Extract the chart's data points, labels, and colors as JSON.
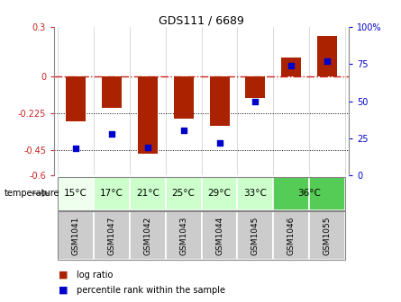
{
  "title": "GDS111 / 6689",
  "samples": [
    "GSM1041",
    "GSM1047",
    "GSM1042",
    "GSM1043",
    "GSM1044",
    "GSM1045",
    "GSM1046",
    "GSM1055"
  ],
  "temperatures": [
    "15°C",
    "17°C",
    "21°C",
    "25°C",
    "29°C",
    "33°C",
    "36°C",
    "36°C"
  ],
  "log_ratios": [
    -0.27,
    -0.19,
    -0.47,
    -0.255,
    -0.3,
    -0.13,
    0.115,
    0.245
  ],
  "percentile_ranks": [
    18,
    28,
    19,
    30,
    22,
    50,
    74,
    77
  ],
  "ylim_left": [
    -0.6,
    0.3
  ],
  "ylim_right": [
    0,
    100
  ],
  "bar_color": "#aa2200",
  "dot_color": "#0000cc",
  "background_color": "#ffffff",
  "zero_line_color": "#cc2222",
  "temp_label": "temperature",
  "temp_colors": [
    "#eeffee",
    "#ccffcc",
    "#ccffcc",
    "#ccffcc",
    "#ccffcc",
    "#ccffcc",
    "#55cc55",
    "#55cc55"
  ],
  "sample_bg": "#cccccc",
  "bar_width": 0.55
}
